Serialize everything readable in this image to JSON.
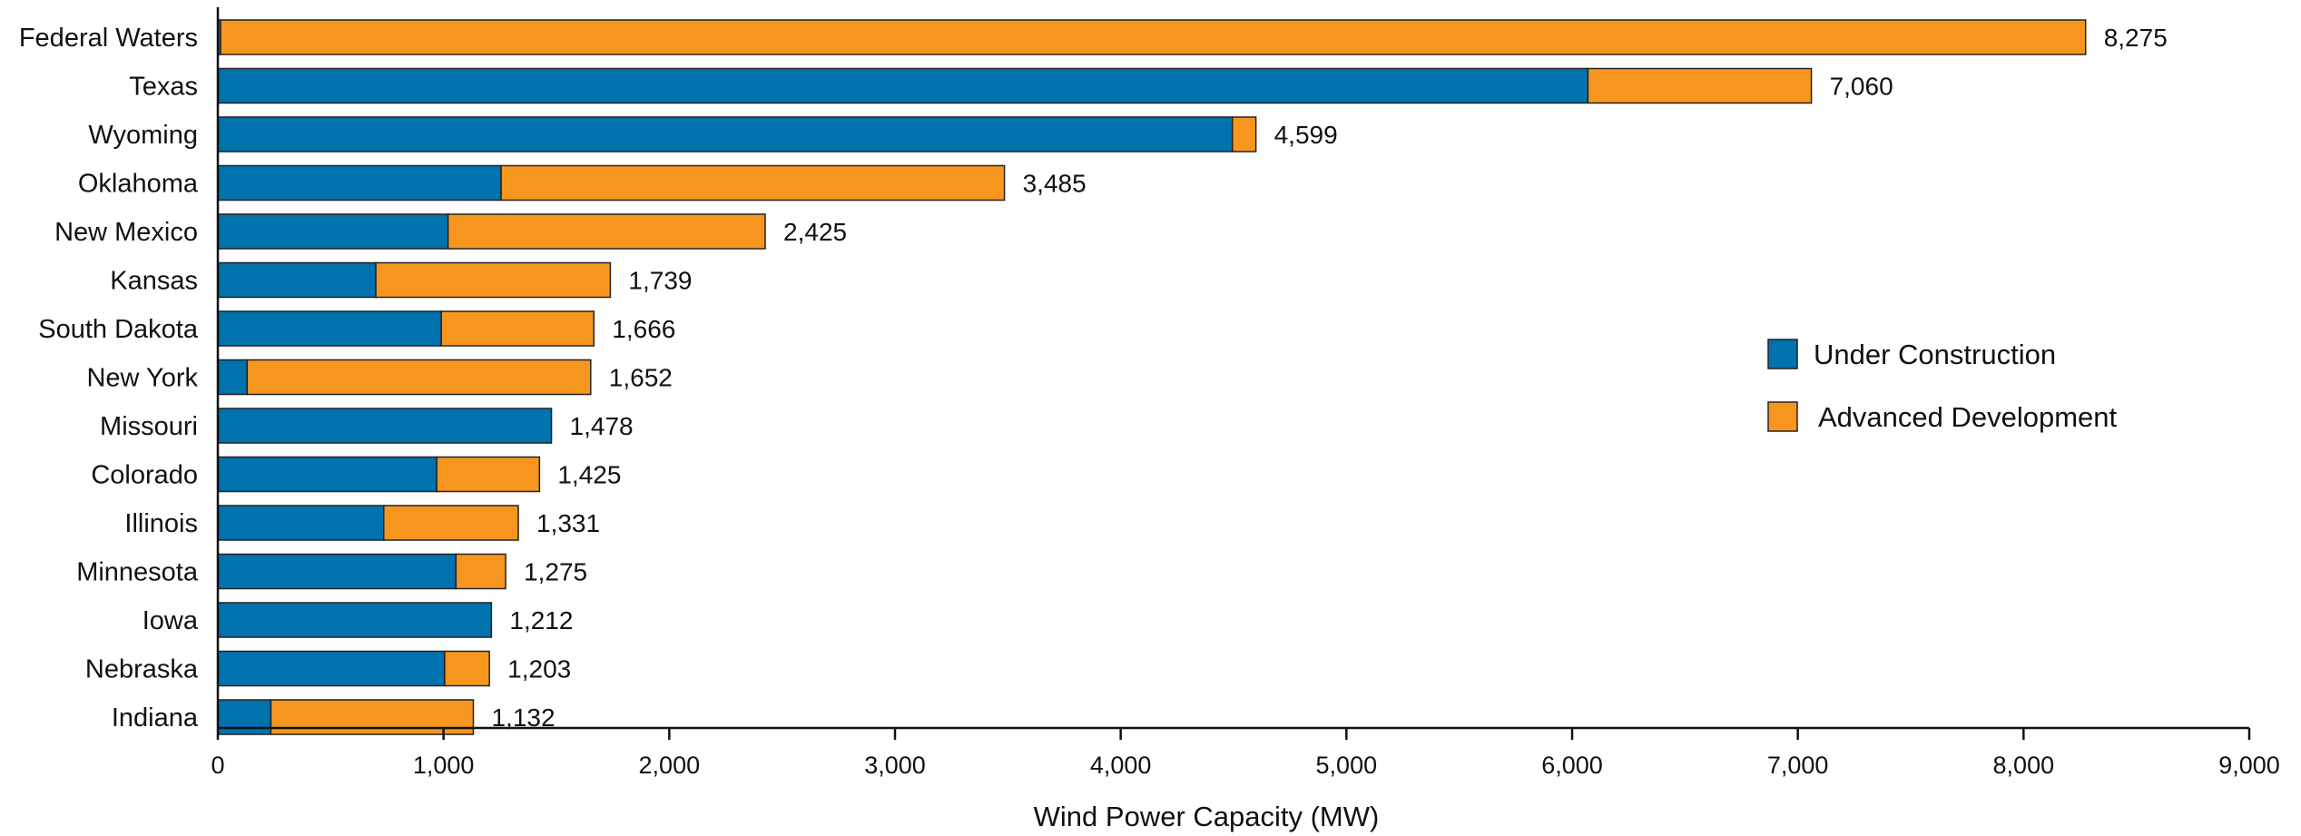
{
  "chart_data": {
    "type": "bar",
    "orientation": "horizontal",
    "stacked": true,
    "title": "",
    "xlabel": "Wind Power Capacity (MW)",
    "ylabel": "",
    "xlim": [
      0,
      9000
    ],
    "grid": false,
    "legend_position": "right",
    "categories": [
      "Federal Waters",
      "Texas",
      "Wyoming",
      "Oklahoma",
      "New Mexico",
      "Kansas",
      "South Dakota",
      "New York",
      "Missouri",
      "Colorado",
      "Illinois",
      "Minnesota",
      "Iowa",
      "Nebraska",
      "Indiana"
    ],
    "series": [
      {
        "name": "Under Construction",
        "color": "#0072AE",
        "values": [
          12,
          6070,
          4495,
          1255,
          1020,
          700,
          990,
          130,
          1478,
          970,
          735,
          1055,
          1212,
          1005,
          235
        ]
      },
      {
        "name": "Advanced Development",
        "color": "#F7961F",
        "values": [
          8263,
          990,
          104,
          2230,
          1405,
          1039,
          676,
          1522,
          0,
          455,
          596,
          220,
          0,
          198,
          897
        ]
      }
    ],
    "totals": [
      8275,
      7060,
      4599,
      3485,
      2425,
      1739,
      1666,
      1652,
      1478,
      1425,
      1331,
      1275,
      1212,
      1203,
      1132
    ],
    "total_labels": [
      "8,275",
      "7,060",
      "4,599",
      "3,485",
      "2,425",
      "1,739",
      "1,666",
      "1,652",
      "1,478",
      "1,425",
      "1,331",
      "1,275",
      "1,212",
      "1,203",
      "1,132"
    ],
    "x_ticks": [
      0,
      1000,
      2000,
      3000,
      4000,
      5000,
      6000,
      7000,
      8000,
      9000
    ],
    "x_tick_labels": [
      "0",
      "1,000",
      "2,000",
      "3,000",
      "4,000",
      "5,000",
      "6,000",
      "7,000",
      "8,000",
      "9,000"
    ]
  }
}
